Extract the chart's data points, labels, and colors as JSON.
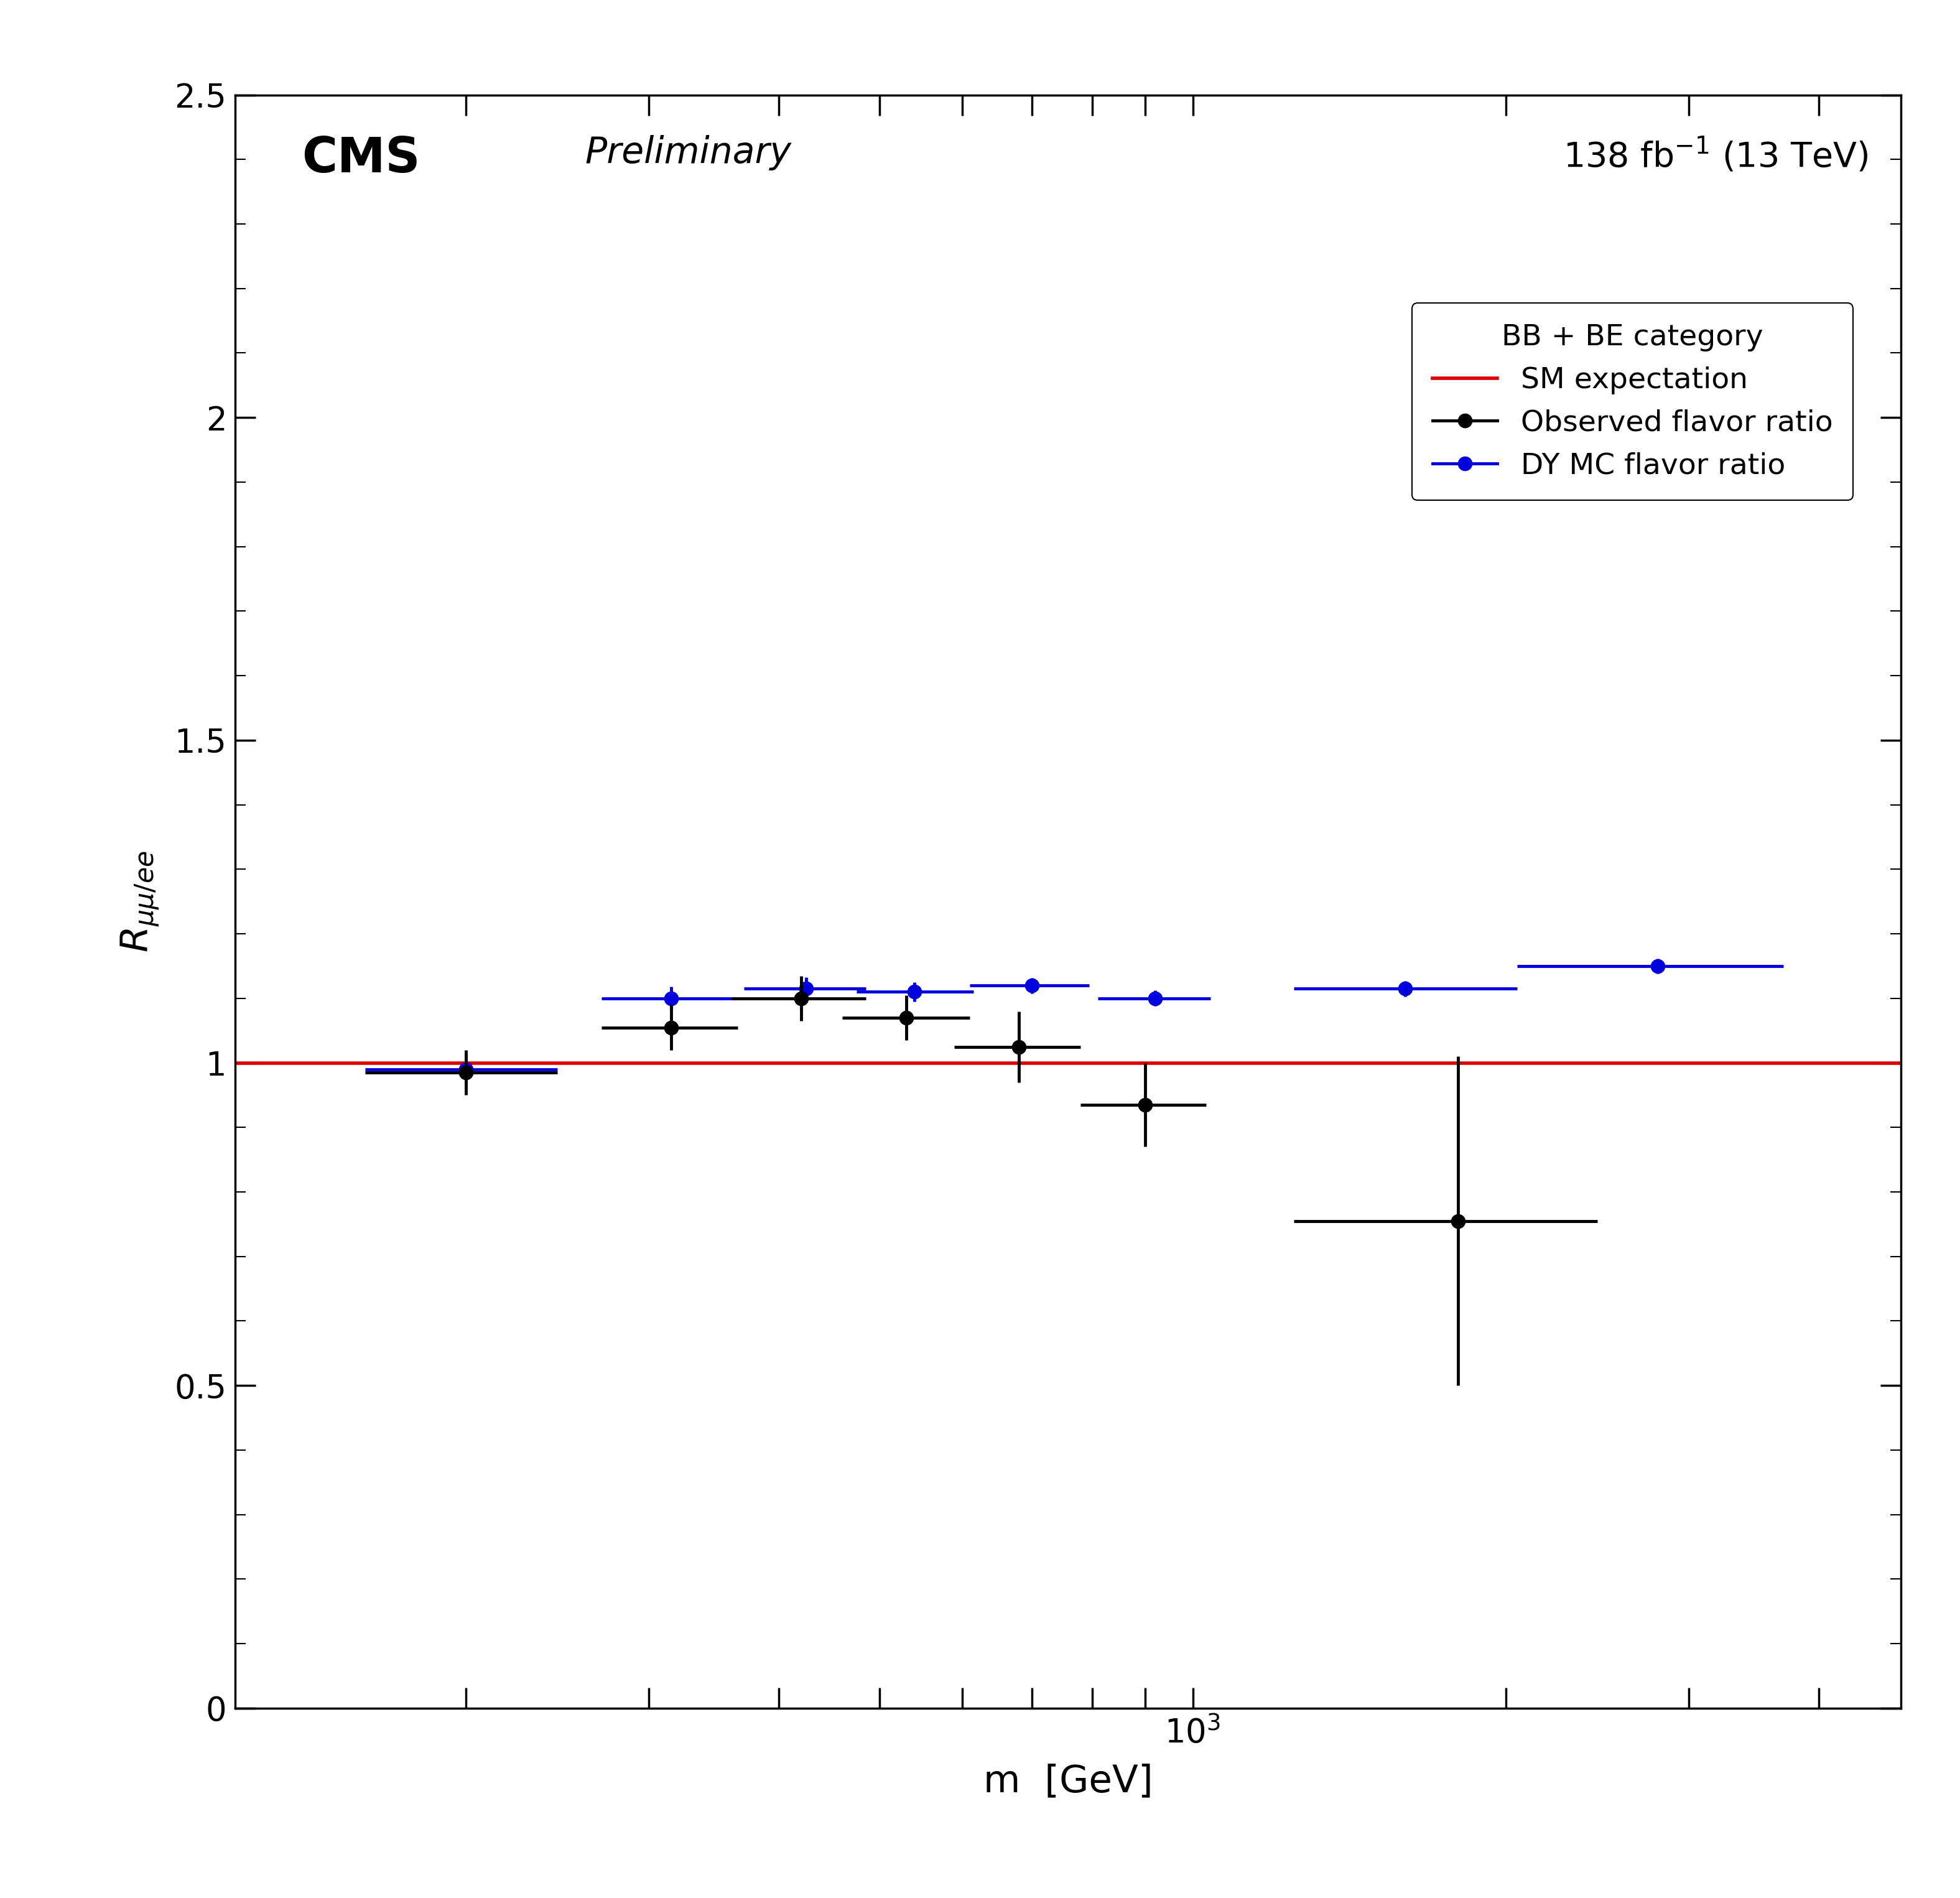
{
  "obs_x": [
    200,
    315,
    420,
    530,
    680,
    900,
    1800
  ],
  "obs_y": [
    0.985,
    1.055,
    1.1,
    1.07,
    1.025,
    0.935,
    0.755
  ],
  "obs_xerr_lo": [
    40,
    45,
    60,
    70,
    90,
    120,
    550
  ],
  "obs_xerr_hi": [
    45,
    50,
    65,
    80,
    100,
    130,
    650
  ],
  "obs_yerr_lo": [
    0.035,
    0.035,
    0.035,
    0.035,
    0.055,
    0.065,
    0.255
  ],
  "obs_yerr_hi": [
    0.035,
    0.035,
    0.035,
    0.035,
    0.055,
    0.065,
    0.255
  ],
  "mc_x": [
    200,
    315,
    425,
    540,
    700,
    920,
    1600,
    2800
  ],
  "mc_y": [
    0.99,
    1.1,
    1.115,
    1.11,
    1.12,
    1.1,
    1.115,
    1.15
  ],
  "mc_xerr_lo": [
    40,
    45,
    55,
    65,
    90,
    110,
    350,
    750
  ],
  "mc_xerr_hi": [
    45,
    50,
    60,
    75,
    95,
    120,
    450,
    900
  ],
  "mc_yerr_lo": [
    0.025,
    0.018,
    0.018,
    0.015,
    0.012,
    0.012,
    0.012,
    0.012
  ],
  "mc_yerr_hi": [
    0.025,
    0.018,
    0.018,
    0.015,
    0.012,
    0.012,
    0.012,
    0.012
  ],
  "sm_y": 1.0,
  "xmin": 120,
  "xmax": 4800,
  "ymin": 0.0,
  "ymax": 2.5,
  "obs_color": "#000000",
  "mc_color": "#0000dd",
  "sm_color": "#dd0000",
  "ylabel": "$R_{\\mu\\mu/ee}$",
  "xlabel": "m  [GeV]",
  "cms_text": "CMS",
  "preliminary_text": "Preliminary",
  "lumi_text": "138 fb$^{-1}$ (13 TeV)",
  "legend_title": "BB + BE category",
  "legend_sm": "SM expectation",
  "legend_obs": "Observed flavor ratio",
  "legend_mc": "DY MC flavor ratio"
}
